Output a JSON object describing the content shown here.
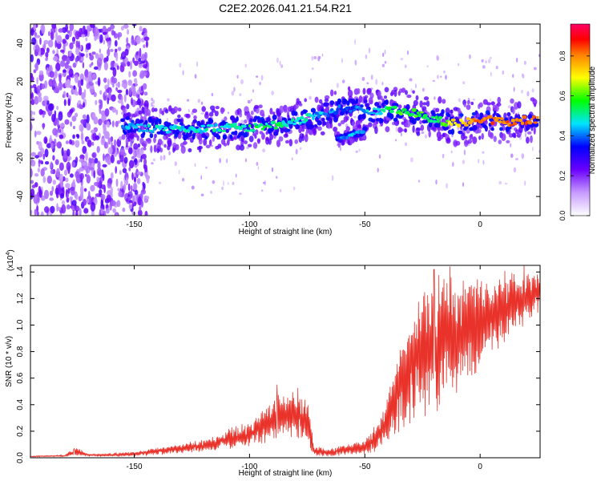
{
  "title": "C2E2.2026.041.21.54.R21",
  "chart_data": [
    {
      "type": "heatmap",
      "xlabel": "Height of straight line (km)",
      "ylabel": "Frequency (Hz)",
      "xlim": [
        -195,
        26
      ],
      "ylim": [
        -50,
        50
      ],
      "xticks": [
        -150,
        -100,
        -50,
        0
      ],
      "yticks": [
        -40,
        -20,
        0,
        20,
        40
      ],
      "xtick_labels": [
        "-150",
        "-100",
        "-50",
        "0"
      ],
      "ytick_labels": [
        "-40",
        "-20",
        "0",
        "20",
        "40"
      ],
      "colorbar": {
        "label": "Normalized spectral amplitude",
        "range": [
          0,
          0.96
        ],
        "ticks": [
          0.0,
          0.2,
          0.4,
          0.6,
          0.8
        ],
        "tick_labels": [
          "0.0",
          "0.2",
          "0.4",
          "0.6",
          "0.8"
        ],
        "colormap": [
          "#ffffff",
          "#8800ff",
          "#0000ff",
          "#00e5ff",
          "#00ff00",
          "#ffff00",
          "#ff0000",
          "#ff00ff"
        ]
      },
      "ridge": {
        "x": [
          -155,
          -140,
          -125,
          -110,
          -100,
          -90,
          -80,
          -75,
          -70,
          -65,
          -60,
          -55,
          -50,
          -45,
          -40,
          -35,
          -30,
          -25,
          -20,
          -15,
          -10,
          -5,
          0,
          5,
          10,
          15,
          20,
          25
        ],
        "y": [
          -3,
          -5,
          -5,
          -4,
          -4,
          -3,
          -1,
          1,
          2,
          4,
          6,
          6,
          5,
          4,
          5,
          5,
          4,
          2,
          0,
          -1,
          -2,
          -1,
          0,
          0,
          -1,
          -1,
          0,
          0
        ],
        "intensity": [
          0.45,
          0.5,
          0.5,
          0.5,
          0.55,
          0.55,
          0.5,
          0.5,
          0.45,
          0.45,
          0.4,
          0.4,
          0.45,
          0.5,
          0.55,
          0.6,
          0.6,
          0.6,
          0.55,
          0.65,
          0.75,
          0.8,
          0.85,
          0.85,
          0.85,
          0.85,
          0.85,
          0.8
        ]
      },
      "secondary_ridge": {
        "x": [
          -62,
          -58,
          -54,
          -50
        ],
        "y": [
          -10,
          -9,
          -7,
          -6
        ],
        "intensity": [
          0.4,
          0.45,
          0.45,
          0.4
        ]
      },
      "noise_region_x": [
        -195,
        -150
      ]
    },
    {
      "type": "line",
      "xlabel": "Height of straight line (km)",
      "ylabel": "SNR (10 * v/v)",
      "y_multiplier": "(x10",
      "y_multiplier_exp": "4",
      "y_multiplier_close": ")",
      "xlim": [
        -195,
        26
      ],
      "ylim": [
        0,
        1.45
      ],
      "xticks": [
        -150,
        -100,
        -50,
        0
      ],
      "yticks": [
        0.0,
        0.2,
        0.4,
        0.6,
        0.8,
        1.0,
        1.2,
        1.4
      ],
      "xtick_labels": [
        "-150",
        "-100",
        "-50",
        "0"
      ],
      "ytick_labels": [
        "0.0",
        "0.2",
        "0.4",
        "0.6",
        "0.8",
        "1.0",
        "1.2",
        "1.4"
      ],
      "color": "#e8322a",
      "series": [
        {
          "x": [
            -195,
            -180,
            -175,
            -170,
            -160,
            -150,
            -140,
            -130,
            -120,
            -115,
            -110,
            -100,
            -95,
            -90,
            -85,
            -80,
            -75,
            -72,
            -65,
            -55,
            -50,
            -45,
            -40,
            -35,
            -30,
            -25,
            -20,
            -15,
            -10,
            -5,
            0,
            5,
            10,
            15,
            20,
            25
          ],
          "y": [
            0.01,
            0.015,
            0.05,
            0.02,
            0.02,
            0.03,
            0.05,
            0.07,
            0.09,
            0.11,
            0.14,
            0.17,
            0.23,
            0.28,
            0.32,
            0.33,
            0.26,
            0.05,
            0.04,
            0.07,
            0.08,
            0.15,
            0.3,
            0.5,
            0.7,
            0.8,
            0.85,
            0.9,
            0.9,
            0.98,
            1.02,
            1.07,
            1.12,
            1.18,
            1.2,
            1.25
          ],
          "spread": [
            0.005,
            0.008,
            0.04,
            0.01,
            0.015,
            0.02,
            0.03,
            0.04,
            0.05,
            0.06,
            0.08,
            0.1,
            0.14,
            0.16,
            0.2,
            0.22,
            0.2,
            0.04,
            0.03,
            0.05,
            0.06,
            0.12,
            0.2,
            0.35,
            0.45,
            0.5,
            0.55,
            0.55,
            0.45,
            0.45,
            0.4,
            0.35,
            0.3,
            0.25,
            0.22,
            0.18
          ]
        }
      ],
      "peaks": [
        {
          "x": -176,
          "y": 0.07
        },
        {
          "x": -88,
          "y": 0.55
        },
        {
          "x": -20,
          "y": 1.42
        },
        {
          "x": -13,
          "y": 1.44
        },
        {
          "x": 19,
          "y": 1.45
        }
      ]
    }
  ]
}
